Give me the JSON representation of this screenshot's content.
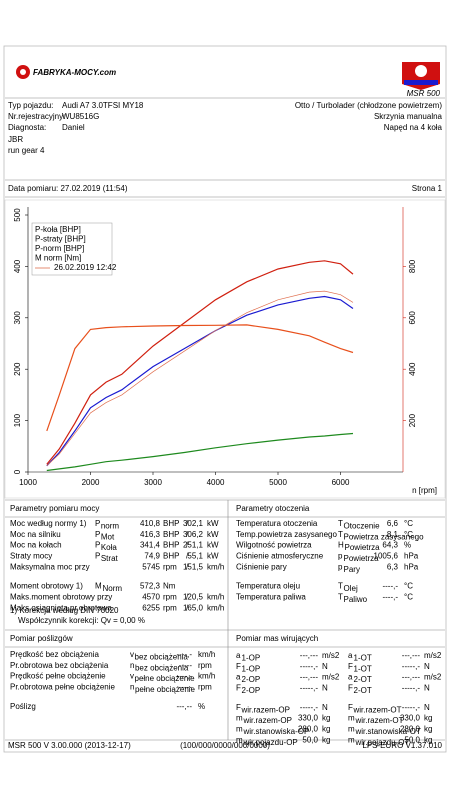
{
  "header": {
    "logo": "FABRYKA-MOCY.com",
    "model": "MSR 500"
  },
  "vehicle": {
    "left": [
      [
        "Typ pojazdu:",
        "Audi A7 3.0TFSI MY18"
      ],
      [
        "Nr.rejestracyjny:",
        "WU8516G"
      ],
      [
        "Diagnosta:",
        "Daniel"
      ]
    ],
    "right": [
      "Otto / Turbolader (chłodzone powietrzem)",
      "Skrzynia manualna",
      "Napęd na 4 koła"
    ]
  },
  "notes": [
    "JBR",
    "run gear 4"
  ],
  "measurement": {
    "date": "Data pomiaru: 27.02.2019 (11:54)",
    "page": "Strona 1"
  },
  "chart_data": {
    "type": "line",
    "x": [
      1300,
      1500,
      1750,
      2000,
      2250,
      2500,
      3000,
      3500,
      4000,
      4500,
      5000,
      5500,
      5745,
      6000,
      6200
    ],
    "xlim": [
      1000,
      7000
    ],
    "xticks": [
      1000,
      2000,
      3000,
      4000,
      5000,
      6000
    ],
    "x_label": "n [rpm]",
    "ylim": [
      0,
      500
    ],
    "yticks": [
      0,
      100,
      200,
      300,
      400,
      500
    ],
    "y2lim": [
      0,
      1000
    ],
    "y2ticks": [
      200,
      400,
      600,
      800
    ],
    "legend": "upper left",
    "series": [
      {
        "name": "P-koła [BHP]",
        "color": "#1a1ad0",
        "values": [
          12,
          38,
          80,
          125,
          145,
          160,
          205,
          240,
          275,
          305,
          325,
          338,
          341.4,
          335,
          318
        ]
      },
      {
        "name": "P-straty [BHP]",
        "color": "#1e8a1e",
        "values": [
          3,
          6,
          10,
          15,
          20,
          23,
          30,
          38,
          47,
          55,
          62,
          68,
          70,
          73,
          74.9
        ]
      },
      {
        "name": "P-norm [BHP]",
        "color": "#d02010",
        "values": [
          15,
          45,
          95,
          150,
          175,
          190,
          245,
          290,
          335,
          370,
          395,
          408,
          410.8,
          405,
          385
        ]
      },
      {
        "name": "M norm [Nm]",
        "color": "#e8501c",
        "axis": "y2",
        "values": [
          160,
          300,
          480,
          555,
          562,
          565,
          568,
          570,
          571,
          572.3,
          555,
          530,
          505,
          480,
          465
        ]
      },
      {
        "name": "26.02.2019 12:42",
        "color": "#e07050",
        "values": [
          12,
          35,
          75,
          115,
          135,
          150,
          195,
          235,
          275,
          310,
          335,
          350,
          352,
          345,
          330
        ]
      }
    ]
  },
  "power": {
    "title": "Parametry pomiaru mocy",
    "rows": [
      {
        "color": "#d01010",
        "cells": [
          "Moc według normy 1)",
          "P",
          "norm",
          "410,8",
          "BHP",
          "/",
          "302,1",
          "kW"
        ]
      },
      {
        "color": "#d01010",
        "cells": [
          "Moc na silniku",
          "P",
          "Mot",
          "416,3",
          "BHP",
          "/",
          "306,2",
          "kW"
        ]
      },
      {
        "color": "#1a1ad0",
        "cells": [
          "Moc na kołach",
          "P",
          "Koła",
          "341,4",
          "BHP",
          "/",
          "251,1",
          "kW"
        ]
      },
      {
        "color": "#1e8a1e",
        "cells": [
          "Straty mocy",
          "P",
          "Strat",
          "74,9",
          "BHP",
          "/",
          "55,1",
          "kW"
        ]
      },
      {
        "color": "#000000",
        "cells": [
          "Maksymalna moc przy",
          null,
          null,
          "5745",
          "rpm",
          "/",
          "151,5",
          "km/h"
        ]
      },
      {
        "color": "#e8501c",
        "cells": [
          "Moment obrotowy 1)",
          "M",
          "Norm",
          "572,3",
          "Nm",
          null,
          null,
          null
        ]
      },
      {
        "color": "#000000",
        "cells": [
          "Maks.moment obrotowy przy",
          null,
          null,
          "4570",
          "rpm",
          "/",
          "120,5",
          "km/h"
        ]
      },
      {
        "color": "#000000",
        "cells": [
          "Maks.osiągnięta pr.obrotowa",
          null,
          null,
          "6255",
          "rpm",
          "/",
          "165,0",
          "km/h"
        ]
      }
    ],
    "notes": [
      "1) Korekcja według DIN 70020",
      "Współczynnik korekcji: Qv = 0,00 %"
    ]
  },
  "environment": {
    "title": "Parametry otoczenia",
    "rows": [
      [
        "Temperatura otoczenia",
        "T",
        "Otoczenie",
        "6,6",
        "°C"
      ],
      [
        "Temp.powietrza zasysanego",
        "T",
        "Powietrza zasysanego",
        "8,1",
        "°C"
      ],
      [
        "Wilgotność powietrza",
        "H",
        "Powietrza",
        "64,3",
        "%"
      ],
      [
        "Ciśnienie atmosferyczne",
        "p",
        "Powietrza",
        "1005,6",
        "hPa"
      ],
      [
        "Ciśnienie pary",
        "p",
        "Pary",
        "6,3",
        "hPa"
      ],
      [
        "Temperatura oleju",
        "T",
        "Olej",
        "----,-",
        "°C"
      ],
      [
        "Temperatura paliwa",
        "T",
        "Paliwo",
        "----,-",
        "°C"
      ]
    ]
  },
  "slip": {
    "title": "Pomiar poślizgów",
    "rows": [
      [
        "Prędkość bez obciążenia",
        "v",
        "bez obciążenia",
        "----,-",
        "km/h"
      ],
      [
        "Pr.obrotowa bez obciążenia",
        "n",
        "bez obciążenia",
        "-----",
        "rpm"
      ],
      [
        "Prędkość pełne obciążenie",
        "v",
        "pełne obciążenie",
        "----,-",
        "km/h"
      ],
      [
        "Pr.obrotowa pełne obciążenie",
        "n",
        "pełne obciążenie",
        "-----",
        "rpm"
      ],
      [
        "Poślizg",
        null,
        null,
        "---,--",
        "%"
      ]
    ]
  },
  "masses": {
    "title": "Pomiar mas wirujących",
    "rows": [
      [
        "a",
        "1-OP",
        "---,---",
        "m/s2",
        "a",
        "1-OT",
        "---,---",
        "m/s2"
      ],
      [
        "F",
        "1-OP",
        "-----,-",
        "N",
        "F",
        "1-OT",
        "-----,-",
        "N"
      ],
      [
        "a",
        "2-OP",
        "---,---",
        "m/s2",
        "a",
        "2-OT",
        "---,---",
        "m/s2"
      ],
      [
        "F",
        "2-OP",
        "-----,-",
        "N",
        "F",
        "2-OT",
        "-----,-",
        "N"
      ],
      [
        "F",
        "wir.razem-OP",
        "-----,-",
        "N",
        "F",
        "wir.razem-OT",
        "-----,-",
        "N"
      ],
      [
        "m",
        "wir.razem-OP",
        "330,0",
        "kg",
        "m",
        "wir.razem-OT",
        "330,0",
        "kg"
      ],
      [
        "m",
        "wir.stanowiska-OP",
        "280,0",
        "kg",
        "m",
        "wir.stanowiska-OT",
        "280,0",
        "kg"
      ],
      [
        "m",
        "wir.pojazdu-OP",
        "50,0",
        "kg",
        "m",
        "wir.pojazdu-OT",
        "50,0",
        "kg"
      ]
    ]
  },
  "footer": [
    "MSR 500 V 3.00.000 (2013-12-17)",
    "(100/000/0000/000/0000)",
    "LPS-EURO V1.37.010"
  ]
}
